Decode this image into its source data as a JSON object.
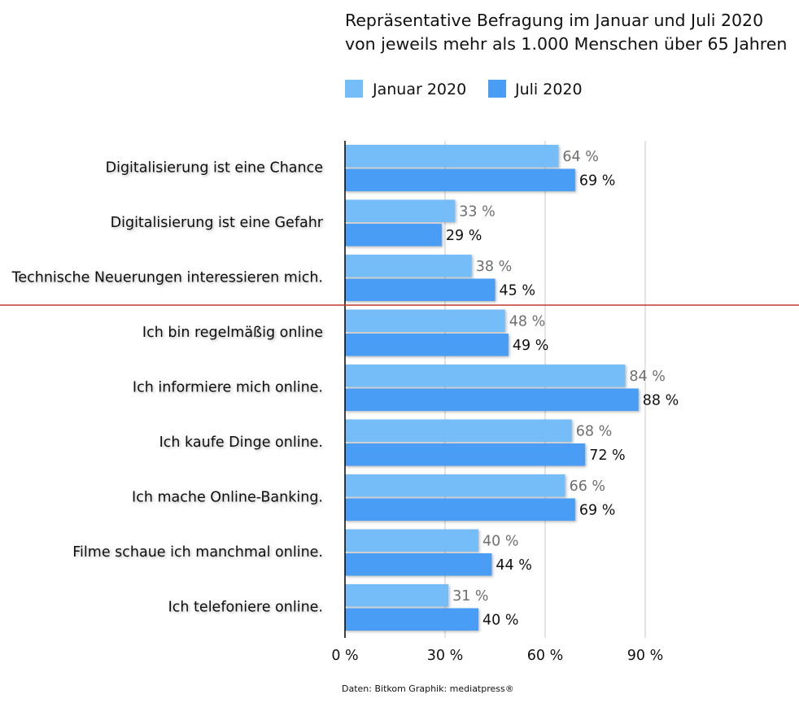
{
  "chart_data": {
    "type": "bar",
    "orientation": "horizontal",
    "title_lines": [
      "Repräsentative Befragung im Januar und Juli 2020",
      "von jeweils mehr als 1.000 Menschen über 65 Jahren"
    ],
    "categories": [
      "Digitalisierung ist eine Chance",
      "Digitalisierung ist eine Gefahr",
      "Technische Neuerungen interessieren mich.",
      "Ich bin regelmäßig online",
      "Ich informiere mich online.",
      "Ich kaufe Dinge online.",
      "Ich mache Online-Banking.",
      "Filme schaue ich manchmal online.",
      "Ich telefoniere online."
    ],
    "series": [
      {
        "name": "Januar 2020",
        "color": "#74bdf8",
        "values": [
          64,
          33,
          38,
          48,
          84,
          68,
          66,
          40,
          31
        ],
        "labels": [
          "64 %",
          "33 %",
          "38 %",
          "48 %",
          "84 %",
          "68 %",
          "66 %",
          "40 %",
          "31 %"
        ]
      },
      {
        "name": "Juli 2020",
        "color": "#4a9df5",
        "values": [
          69,
          29,
          45,
          49,
          88,
          72,
          69,
          44,
          40
        ],
        "labels": [
          "69 %",
          "29 %",
          "45 %",
          "49 %",
          "88 %",
          "72 %",
          "69 %",
          "44 %",
          "40 %"
        ]
      }
    ],
    "xlim": [
      0,
      90
    ],
    "xticks": [
      0,
      30,
      60,
      90
    ],
    "xtick_labels": [
      "0 %",
      "30 %",
      "60 %",
      "90 %"
    ],
    "grid": true,
    "legend_position": "top",
    "separator_after_index": 2,
    "separator_color": "#c0392b",
    "source": "Daten: Bitkom Graphik: mediatpress®"
  }
}
